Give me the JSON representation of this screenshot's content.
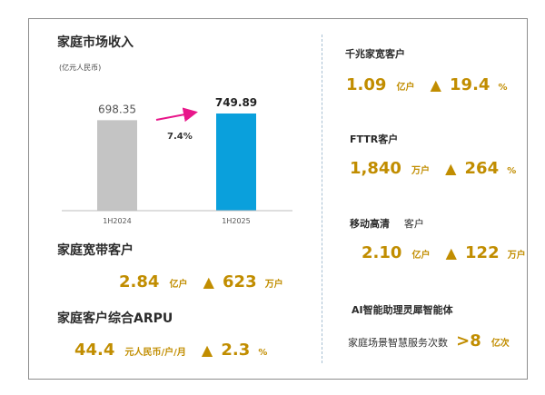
{
  "chart_data": {
    "type": "bar",
    "title": "家庭市场收入",
    "unit": "(亿元人民币)",
    "categories": [
      "1H2024",
      "1H2025"
    ],
    "values": [
      698.35,
      749.89
    ],
    "value_labels": [
      "698.35",
      "749.89"
    ],
    "growth_label": "7.4%",
    "colors": [
      "#c4c4c4",
      "#0aa0dc"
    ],
    "grid": false,
    "legend": "none"
  },
  "broadband": {
    "title": "家庭宽带客户",
    "value": "2.84",
    "unit": "亿户",
    "triangle": "▲",
    "increase": "623",
    "increase_unit": "万户"
  },
  "arpu": {
    "title": "家庭客户综合ARPU",
    "value": "44.4",
    "unit": "元人民币/户/月",
    "triangle": "▲",
    "increase": "2.3",
    "increase_unit": "%"
  },
  "gigabit": {
    "title": "千兆家宽客户",
    "value": "1.09",
    "unit": "亿户",
    "triangle": "▲",
    "increase": "19.4",
    "increase_unit": "%"
  },
  "fttr": {
    "title": "FTTR客户",
    "value": "1,840",
    "unit": "万户",
    "triangle": "▲",
    "increase": "264",
    "increase_unit": "%"
  },
  "mobile_hd": {
    "title": "移动高清",
    "title_suffix": "客户",
    "value": "2.10",
    "unit": "亿户",
    "triangle": "▲",
    "increase": "122",
    "increase_unit": "万户"
  },
  "ai": {
    "title": "AI智能助理灵犀智能体",
    "service_label": "家庭场景智慧服务次数",
    "gt": ">",
    "value": "8",
    "unit": "亿次"
  }
}
